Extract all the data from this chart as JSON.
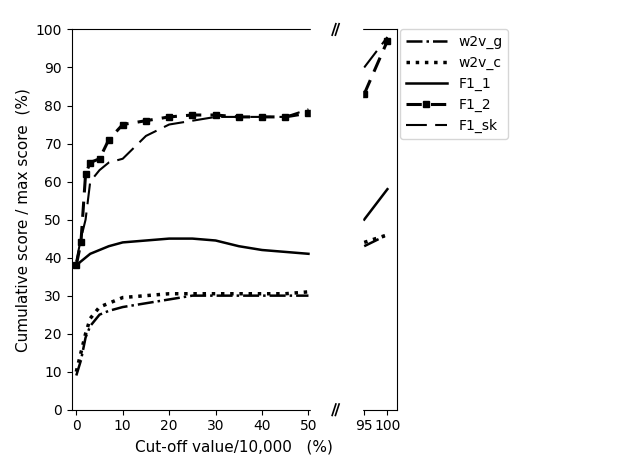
{
  "xlabel": "Cut-off value/10,000   (%)",
  "ylabel": "Cumulative score / max score  (%)",
  "ylim": [
    0,
    100
  ],
  "yticks": [
    0,
    10,
    20,
    30,
    40,
    50,
    60,
    70,
    80,
    90,
    100
  ],
  "xtick_positions": [
    0,
    10,
    20,
    30,
    40,
    50,
    62,
    67
  ],
  "xtick_labels": [
    "0",
    "10",
    "20",
    "30",
    "40",
    "50",
    "95",
    "100"
  ],
  "xlim": [
    -1,
    69
  ],
  "break_display_x": 57,
  "x_map_95": 62,
  "x_map_100": 67,
  "series": {
    "w2v_g": {
      "x": [
        0,
        1,
        2,
        3,
        5,
        7,
        10,
        15,
        20,
        25,
        30,
        35,
        40,
        45,
        50,
        95,
        100
      ],
      "y": [
        9,
        13,
        19,
        22,
        25,
        26,
        27,
        28,
        29,
        30,
        30,
        30,
        30,
        30,
        30,
        43,
        46
      ],
      "linestyle": "-.",
      "linewidth": 1.8,
      "color": "black",
      "label": "w2v_g"
    },
    "w2v_c": {
      "x": [
        0,
        1,
        2,
        3,
        5,
        7,
        10,
        15,
        20,
        25,
        30,
        35,
        40,
        45,
        50,
        95,
        100
      ],
      "y": [
        10,
        15,
        20,
        24,
        27,
        28,
        29.5,
        30,
        30.5,
        30.5,
        30.5,
        30.5,
        30.5,
        30.5,
        31,
        44,
        46
      ],
      "linestyle": ":",
      "linewidth": 2.5,
      "color": "black",
      "label": "w2v_c"
    },
    "F1_1": {
      "x": [
        0,
        1,
        2,
        3,
        5,
        7,
        10,
        15,
        20,
        25,
        30,
        35,
        40,
        45,
        50,
        95,
        100
      ],
      "y": [
        38,
        39,
        40,
        41,
        42,
        43,
        44,
        44.5,
        45,
        45,
        44.5,
        43,
        42,
        41.5,
        41,
        50,
        58
      ],
      "linestyle": "-",
      "linewidth": 1.8,
      "color": "black",
      "label": "F1_1"
    },
    "F1_2": {
      "x": [
        0,
        1,
        2,
        3,
        5,
        7,
        10,
        15,
        20,
        25,
        30,
        35,
        40,
        45,
        50,
        95,
        100
      ],
      "y": [
        38,
        44,
        62,
        65,
        66,
        71,
        75,
        76,
        77,
        77.5,
        77.5,
        77,
        77,
        77,
        78,
        83,
        97
      ],
      "linestyle": "--",
      "linewidth": 2.2,
      "marker": "s",
      "markersize": 5,
      "color": "black",
      "label": "F1_2"
    },
    "F1_sk": {
      "x": [
        0,
        1,
        2,
        3,
        5,
        7,
        10,
        15,
        20,
        25,
        30,
        35,
        40,
        45,
        50,
        95,
        100
      ],
      "y": [
        39,
        45,
        50,
        60,
        63,
        65,
        66,
        72,
        75,
        76,
        77,
        77,
        77,
        77,
        79,
        90,
        98
      ],
      "linestyle": "--",
      "linewidth": 1.5,
      "color": "black",
      "label": "F1_sk"
    }
  },
  "background_color": "white",
  "figsize": [
    6.4,
    4.69
  ],
  "dpi": 100
}
